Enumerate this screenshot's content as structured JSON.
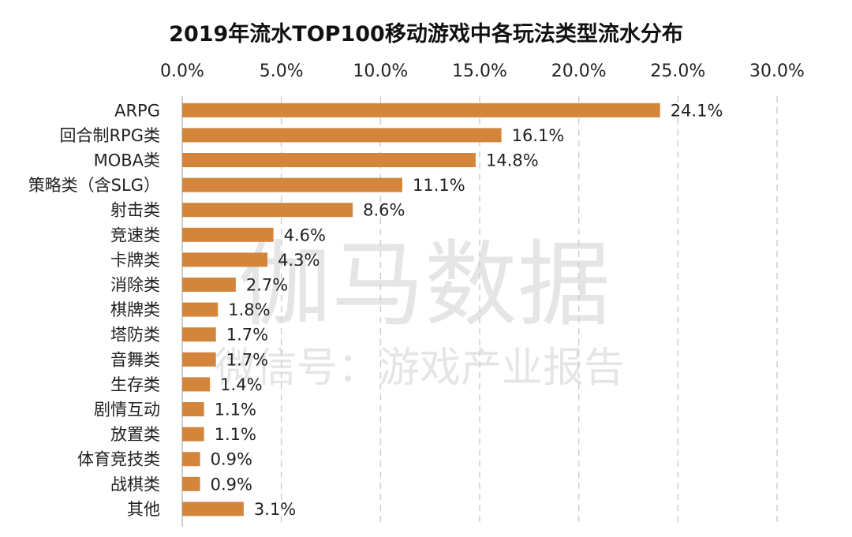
{
  "watermark": {
    "main": "伽马数据",
    "sub": "微信号：游戏产业报告"
  },
  "chart_data": {
    "type": "bar",
    "orientation": "horizontal",
    "title": "2019年流水TOP100移动游戏中各玩法类型流水分布",
    "xlim": [
      0,
      30
    ],
    "x_ticks": [
      0,
      5,
      10,
      15,
      20,
      25,
      30
    ],
    "x_tick_labels": [
      "0.0%",
      "5.0%",
      "10.0%",
      "15.0%",
      "20.0%",
      "25.0%",
      "30.0%"
    ],
    "x_axis_position": "top",
    "grid": true,
    "bar_color": "#d3863b",
    "categories": [
      "ARPG",
      "回合制RPG类",
      "MOBA类",
      "策略类（含SLG）",
      "射击类",
      "竞速类",
      "卡牌类",
      "消除类",
      "棋牌类",
      "塔防类",
      "音舞类",
      "生存类",
      "剧情互动",
      "放置类",
      "体育竞技类",
      "战棋类",
      "其他"
    ],
    "values": [
      24.1,
      16.1,
      14.8,
      11.1,
      8.6,
      4.6,
      4.3,
      2.7,
      1.8,
      1.7,
      1.7,
      1.4,
      1.1,
      1.1,
      0.9,
      0.9,
      3.1
    ],
    "value_labels": [
      "24.1%",
      "16.1%",
      "14.8%",
      "11.1%",
      "8.6%",
      "4.6%",
      "4.3%",
      "2.7%",
      "1.8%",
      "1.7%",
      "1.7%",
      "1.4%",
      "1.1%",
      "1.1%",
      "0.9%",
      "0.9%",
      "3.1%"
    ]
  }
}
